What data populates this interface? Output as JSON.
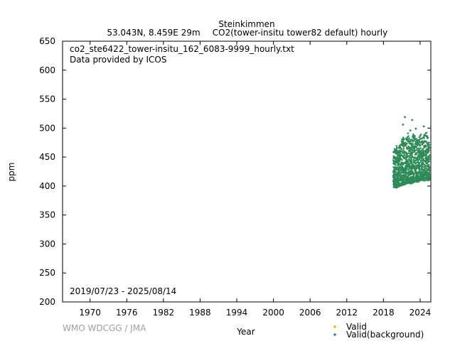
{
  "chart_data": {
    "type": "scatter",
    "title": "Steinkimmen",
    "subtitle_location": "53.043N, 8.459E 29m",
    "subtitle_gas": "CO2(tower-insitu tower82 default) hourly",
    "file_name": "co2_ste6422_tower-insitu_162_6083-9999_hourly.txt",
    "provider": "Data provided by ICOS",
    "date_range": "2019/07/23 - 2025/08/14",
    "xlabel": "Year",
    "ylabel": "ppm",
    "credit": "WMO WDCGG / JMA",
    "xlim": [
      1965.5,
      2025.75
    ],
    "ylim": [
      200,
      650
    ],
    "x_ticks": [
      1970,
      1976,
      1982,
      1988,
      1994,
      2000,
      2006,
      2012,
      2018,
      2024
    ],
    "y_ticks": [
      200,
      250,
      300,
      350,
      400,
      450,
      500,
      550,
      600,
      650
    ],
    "grid": false,
    "legend_position": "bottom-right",
    "series": [
      {
        "name": "Valid",
        "color": "#e6b800",
        "marker": "diamond",
        "points": []
      },
      {
        "name": "Valid(background)",
        "color": "#2e8b57",
        "marker": "diamond",
        "envelope": [
          {
            "x": 2019.6,
            "low": 398,
            "high": 460
          },
          {
            "x": 2019.9,
            "low": 398,
            "high": 472
          },
          {
            "x": 2020.2,
            "low": 397,
            "high": 470
          },
          {
            "x": 2020.5,
            "low": 400,
            "high": 466
          },
          {
            "x": 2020.8,
            "low": 400,
            "high": 478
          },
          {
            "x": 2021.1,
            "low": 402,
            "high": 490
          },
          {
            "x": 2021.4,
            "low": 402,
            "high": 480
          },
          {
            "x": 2021.7,
            "low": 404,
            "high": 485
          },
          {
            "x": 2022.0,
            "low": 405,
            "high": 495
          },
          {
            "x": 2022.3,
            "low": 405,
            "high": 482
          },
          {
            "x": 2022.6,
            "low": 404,
            "high": 478
          },
          {
            "x": 2022.9,
            "low": 406,
            "high": 492
          },
          {
            "x": 2023.2,
            "low": 408,
            "high": 488
          },
          {
            "x": 2023.5,
            "low": 407,
            "high": 478
          },
          {
            "x": 2023.8,
            "low": 408,
            "high": 484
          },
          {
            "x": 2024.1,
            "low": 410,
            "high": 492
          },
          {
            "x": 2024.4,
            "low": 410,
            "high": 482
          },
          {
            "x": 2024.7,
            "low": 409,
            "high": 490
          },
          {
            "x": 2025.0,
            "low": 411,
            "high": 495
          },
          {
            "x": 2025.3,
            "low": 410,
            "high": 485
          },
          {
            "x": 2025.6,
            "low": 411,
            "high": 470
          }
        ],
        "outliers": [
          {
            "x": 2021.5,
            "y": 519
          },
          {
            "x": 2022.7,
            "y": 514
          },
          {
            "x": 2024.6,
            "y": 503
          },
          {
            "x": 2021.2,
            "y": 506
          },
          {
            "x": 2022.4,
            "y": 496
          },
          {
            "x": 2023.3,
            "y": 499
          }
        ]
      }
    ]
  }
}
